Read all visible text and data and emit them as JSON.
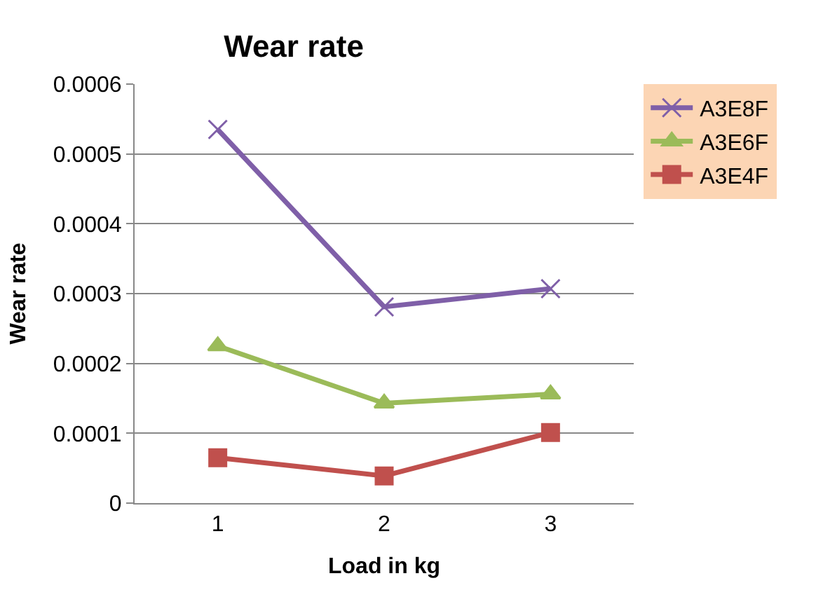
{
  "chart_data": {
    "type": "line",
    "title": "Wear rate",
    "xlabel": "Load in kg",
    "ylabel": "Wear rate",
    "categories": [
      "1",
      "2",
      "3"
    ],
    "series": [
      {
        "name": "A3E8F",
        "color": "#7f5fa8",
        "marker": "cross",
        "values": [
          0.000535,
          0.000281,
          0.000307
        ]
      },
      {
        "name": "A3E6F",
        "color": "#9bbb59",
        "marker": "triangle",
        "values": [
          0.000225,
          0.000143,
          0.000156
        ]
      },
      {
        "name": "A3E4F",
        "color": "#c0504d",
        "marker": "square",
        "values": [
          6.5e-05,
          3.9e-05,
          0.000101
        ]
      }
    ],
    "ylim": [
      0,
      0.0006
    ],
    "yticks": [
      0,
      0.0001,
      0.0002,
      0.0003,
      0.0004,
      0.0005,
      0.0006
    ],
    "grid": "y",
    "legend": "top right"
  }
}
